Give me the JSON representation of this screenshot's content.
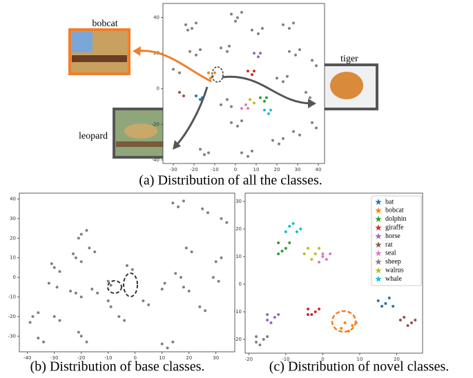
{
  "chart_data": [
    {
      "type": "scatter",
      "title": "(a) Distribution of all the classes.",
      "annotations": [
        "bobcat",
        "tiger",
        "leopard"
      ],
      "xlim": [
        -35,
        43
      ],
      "ylim": [
        -42,
        48
      ],
      "xticks": [
        -30,
        -20,
        -10,
        0,
        10,
        20,
        30,
        40
      ],
      "yticks": [
        -40,
        -20,
        0,
        20,
        40
      ],
      "series": [
        {
          "color": "#808080",
          "x": [
            -24,
            -21,
            -19,
            -23,
            -2,
            1,
            3,
            0,
            8,
            11,
            13,
            23,
            26,
            28,
            -22,
            -19,
            -17,
            -7,
            -4,
            -3,
            26,
            29,
            31,
            37,
            39,
            -30,
            -27,
            20,
            23,
            25,
            34,
            36,
            -7,
            -4,
            -2,
            28,
            31,
            -17,
            -13,
            -15,
            3,
            6,
            8,
            18,
            21,
            23,
            -2,
            1,
            3,
            37,
            39
          ],
          "values": [
            36,
            34,
            37,
            33,
            42,
            40,
            43,
            38,
            33,
            31,
            34,
            36,
            34,
            37,
            21,
            19,
            22,
            23,
            21,
            24,
            21,
            19,
            22,
            16,
            13,
            11,
            9,
            6,
            4,
            7,
            -2,
            -5,
            -9,
            -6,
            -10,
            -24,
            -26,
            -34,
            -36,
            -37,
            -36,
            -38,
            -35,
            -29,
            -31,
            -28,
            -19,
            -21,
            -18,
            -19,
            -22
          ]
        },
        {
          "color": "#ff7f0e",
          "x": [
            -13,
            -11,
            -12,
            -10
          ],
          "values": [
            9,
            7,
            6,
            9
          ]
        },
        {
          "color": "#1f77b4",
          "x": [
            -19,
            -17,
            -16
          ],
          "values": [
            -4,
            -6,
            -5
          ]
        },
        {
          "color": "#8c564b",
          "x": [
            -27,
            -25
          ],
          "values": [
            -2,
            -4
          ]
        },
        {
          "color": "#d62728",
          "x": [
            6,
            8,
            9
          ],
          "values": [
            10,
            8,
            10
          ]
        },
        {
          "color": "#9467bd",
          "x": [
            9,
            11,
            12
          ],
          "values": [
            20,
            18,
            20
          ]
        },
        {
          "color": "#e377c2",
          "x": [
            3,
            5,
            6
          ],
          "values": [
            -11,
            -9,
            -11
          ]
        },
        {
          "color": "#bcbd22",
          "x": [
            7,
            9
          ],
          "values": [
            -6,
            -8
          ]
        },
        {
          "color": "#2ca02c",
          "x": [
            12,
            14,
            15
          ],
          "values": [
            -5,
            -7,
            -5
          ]
        },
        {
          "color": "#17becf",
          "x": [
            14,
            16,
            17
          ],
          "values": [
            -12,
            -14,
            -12
          ]
        }
      ]
    },
    {
      "type": "scatter",
      "title": "(b) Distribution of base classes.",
      "xlim": [
        -43,
        37
      ],
      "ylim": [
        -38,
        43
      ],
      "xticks": [
        -40,
        -30,
        -20,
        -10,
        0,
        10,
        20,
        30
      ],
      "yticks": [
        -30,
        -20,
        -10,
        0,
        10,
        20,
        30,
        40
      ],
      "color": "#808080",
      "x": [
        -38,
        -36,
        -39,
        -30,
        -28,
        -30,
        -28,
        -31,
        -22,
        -20,
        -23,
        -17,
        -15,
        -20,
        -18,
        -21,
        -32,
        -29,
        -22,
        -20,
        -24,
        -16,
        -14,
        -10,
        -9,
        -6,
        -4,
        -20,
        -18,
        -21,
        -10,
        -9,
        -3,
        -1,
        10,
        11,
        10,
        12,
        14,
        14,
        16,
        18,
        25,
        27,
        32,
        34,
        19,
        21,
        15,
        17,
        32,
        30,
        29,
        31,
        24,
        26,
        18,
        20,
        -36,
        -34,
        3,
        5
      ],
      "values": [
        -20,
        -18,
        -23,
        -20,
        -22,
        5,
        3,
        7,
        10,
        8,
        12,
        15,
        13,
        22,
        24,
        20,
        -3,
        -5,
        -8,
        -10,
        -7,
        -6,
        -8,
        -12,
        -15,
        -20,
        -22,
        -30,
        -33,
        -28,
        -2,
        -4,
        6,
        4,
        -6,
        -3,
        -34,
        -36,
        -33,
        38,
        36,
        39,
        35,
        33,
        30,
        28,
        15,
        13,
        2,
        0,
        10,
        8,
        0,
        -2,
        -15,
        -17,
        -5,
        -7,
        -31,
        -33,
        -12,
        -14
      ]
    },
    {
      "type": "scatter",
      "title": "(c) Distribution of novel classes.",
      "xlim": [
        -21,
        27
      ],
      "ylim": [
        -25,
        33
      ],
      "xticks": [
        -20,
        -10,
        0,
        10,
        20
      ],
      "yticks": [
        -20,
        -10,
        0,
        10,
        20,
        30
      ],
      "legend": "upper right",
      "series": [
        {
          "name": "bat",
          "color": "#1f77b4",
          "x": [
            15,
            17,
            19,
            16,
            18
          ],
          "values": [
            -6,
            -7,
            -8,
            -8,
            -5
          ]
        },
        {
          "name": "bobcat",
          "color": "#ff7f0e",
          "x": [
            6,
            8,
            7,
            5,
            9
          ],
          "values": [
            -14,
            -15,
            -17,
            -16,
            -14
          ]
        },
        {
          "name": "dolphin",
          "color": "#2ca02c",
          "x": [
            -12,
            -10,
            -11,
            -9,
            -12
          ],
          "values": [
            15,
            13,
            12,
            15,
            11
          ]
        },
        {
          "name": "giraffe",
          "color": "#d62728",
          "x": [
            -4,
            -2,
            -3,
            -1,
            -4
          ],
          "values": [
            -9,
            -10,
            -11,
            -9,
            -11
          ]
        },
        {
          "name": "horse",
          "color": "#9467bd",
          "x": [
            -15,
            -13,
            -14,
            -12,
            -15
          ],
          "values": [
            -11,
            -12,
            -14,
            -11,
            -13
          ]
        },
        {
          "name": "rat",
          "color": "#8c564b",
          "x": [
            22,
            24,
            23,
            21,
            25
          ],
          "values": [
            -12,
            -14,
            -15,
            -13,
            -13
          ]
        },
        {
          "name": "seal",
          "color": "#e377c2",
          "x": [
            0,
            1,
            -1,
            2,
            0
          ],
          "values": [
            11,
            9,
            8,
            11,
            10
          ]
        },
        {
          "name": "sheep",
          "color": "#7f7f7f",
          "x": [
            -18,
            -16,
            -17,
            -15,
            -18
          ],
          "values": [
            -19,
            -20,
            -22,
            -19,
            -21
          ]
        },
        {
          "name": "walrus",
          "color": "#bcbd22",
          "x": [
            -4,
            -2,
            -3,
            -5,
            -1
          ],
          "values": [
            13,
            11,
            9,
            11,
            13
          ]
        },
        {
          "name": "whale",
          "color": "#17becf",
          "x": [
            -9,
            -7,
            -8,
            -6,
            -10
          ],
          "values": [
            21,
            19,
            22,
            20,
            19
          ]
        }
      ]
    }
  ]
}
